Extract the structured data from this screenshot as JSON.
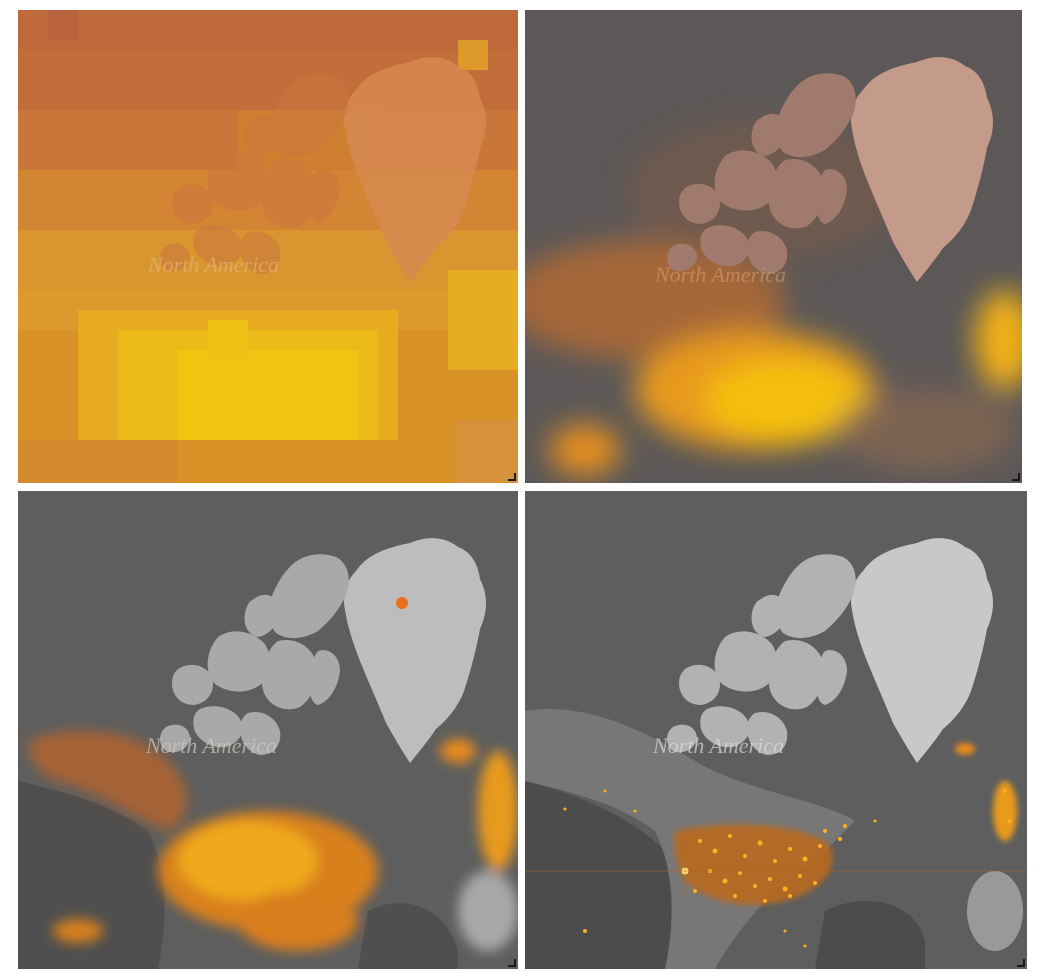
{
  "panels": [
    {
      "id": "top-left",
      "label_text": "North America",
      "resolution": "coarse",
      "glow_color": "#f2c210",
      "background": "#c97a2a",
      "land": "#d68a50"
    },
    {
      "id": "top-right",
      "label_text": "North America",
      "resolution": "medium",
      "glow_color": "#f5c010",
      "background": "#5c5858",
      "land": "#c49a8a"
    },
    {
      "id": "bottom-left",
      "label_text": "North America",
      "resolution": "fine",
      "glow_color": "#f3a41a",
      "background": "#5e5e5e",
      "land": "#bdbdbd"
    },
    {
      "id": "bottom-right",
      "label_text": "North America",
      "resolution": "finest",
      "glow_color": "#ffb020",
      "background": "#5e5e5e",
      "land": "#c8c8c8"
    }
  ]
}
